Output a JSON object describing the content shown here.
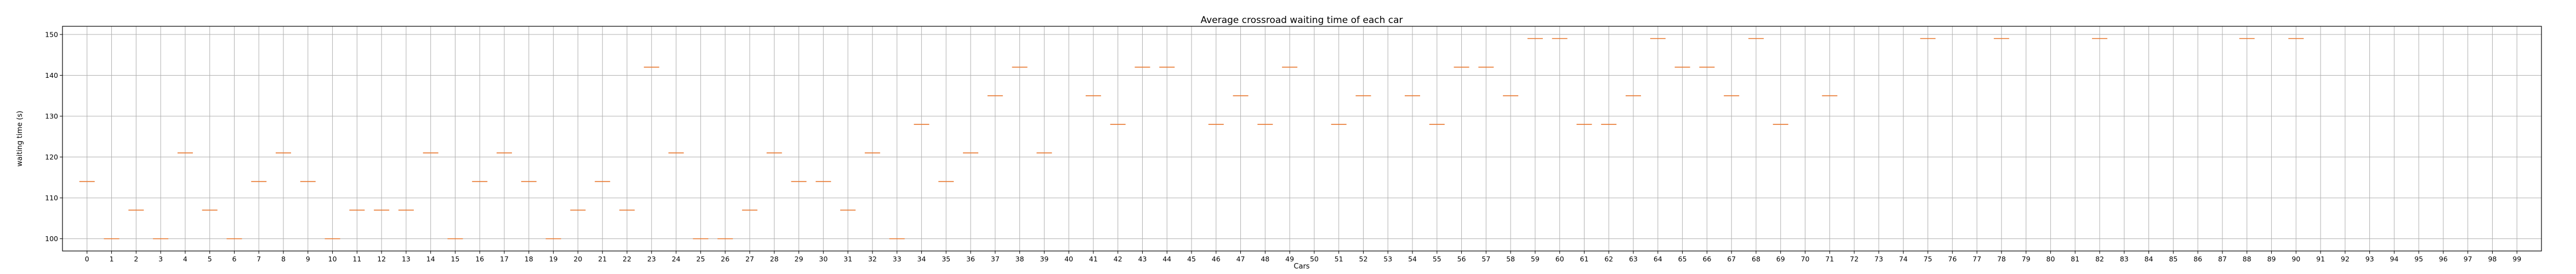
{
  "chart_data": {
    "type": "scatter",
    "marker": "horizontal-line",
    "title": "Average crossroad waiting time of each car",
    "xlabel": "Cars",
    "ylabel": "waiting time (s)",
    "grid": true,
    "xlim": [
      -1,
      100
    ],
    "ylim": [
      97,
      152
    ],
    "yticks": [
      100,
      110,
      120,
      130,
      140,
      150
    ],
    "xticks": [
      "0",
      "1",
      "2",
      "3",
      "4",
      "5",
      "6",
      "7",
      "8",
      "9",
      "10",
      "11",
      "12",
      "13",
      "14",
      "15",
      "16",
      "17",
      "18",
      "19",
      "20",
      "21",
      "22",
      "23",
      "24",
      "25",
      "26",
      "27",
      "28",
      "29",
      "30",
      "31",
      "32",
      "33",
      "34",
      "35",
      "36",
      "37",
      "38",
      "39",
      "40",
      "41",
      "42",
      "43",
      "44",
      "45",
      "46",
      "47",
      "48",
      "49",
      "50",
      "51",
      "52",
      "53",
      "54",
      "55",
      "56",
      "57",
      "58",
      "59",
      "60",
      "61",
      "62",
      "63",
      "64",
      "65",
      "66",
      "67",
      "68",
      "69",
      "70",
      "71",
      "72",
      "73",
      "74",
      "75",
      "76",
      "77",
      "78",
      "79",
      "80",
      "81",
      "82",
      "83",
      "84",
      "85",
      "86",
      "87",
      "88",
      "89",
      "90",
      "91",
      "92",
      "93",
      "94",
      "95",
      "96",
      "97",
      "98",
      "99"
    ],
    "colors": {
      "marker": "#e8762c"
    },
    "series": [
      {
        "x": [
          0,
          1,
          2,
          3,
          4,
          5,
          6,
          7,
          8,
          9,
          10,
          11,
          12,
          13,
          14,
          15,
          16,
          17,
          18,
          19,
          20,
          21,
          22,
          23,
          24,
          25,
          26,
          27,
          28,
          29,
          30,
          31,
          32,
          33,
          34,
          35,
          36,
          37,
          38,
          39,
          41,
          42,
          43,
          44,
          46,
          47,
          48,
          49,
          51,
          52,
          54,
          55,
          56,
          57,
          58,
          59,
          60,
          61,
          62,
          63,
          64,
          65,
          66,
          67,
          68,
          69,
          71,
          75,
          78,
          82,
          88,
          90
        ],
        "y": [
          114,
          100,
          107,
          100,
          121,
          107,
          100,
          114,
          121,
          114,
          100,
          107,
          107,
          107,
          121,
          100,
          114,
          121,
          114,
          100,
          107,
          114,
          107,
          142,
          121,
          100,
          100,
          107,
          121,
          114,
          114,
          107,
          121,
          100,
          128,
          114,
          121,
          135,
          142,
          121,
          135,
          128,
          142,
          142,
          128,
          135,
          128,
          142,
          128,
          135,
          135,
          128,
          142,
          142,
          135,
          149,
          149,
          128,
          128,
          135,
          149,
          142,
          142,
          135,
          149,
          128,
          135,
          149,
          149,
          149,
          149,
          149
        ]
      }
    ]
  }
}
